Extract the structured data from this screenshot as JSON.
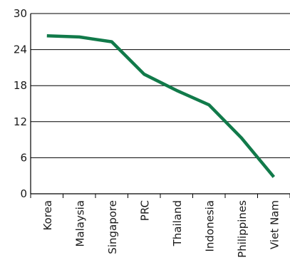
{
  "chart_data": {
    "type": "line",
    "title": "",
    "xlabel": "",
    "ylabel": "",
    "categories": [
      "Korea",
      "Malaysia",
      "Singapore",
      "PRC",
      "Thailand",
      "Indonesia",
      "Philippines",
      "Viet Nam"
    ],
    "series": [
      {
        "values": [
          26.3,
          26.1,
          25.3,
          19.9,
          17.2,
          14.8,
          9.3,
          2.8
        ],
        "color": "#117a4a"
      }
    ],
    "ylim": [
      0,
      30
    ],
    "yticks": [
      "0",
      "6",
      "12",
      "18",
      "24",
      "30"
    ],
    "grid": true,
    "legend": "none"
  }
}
